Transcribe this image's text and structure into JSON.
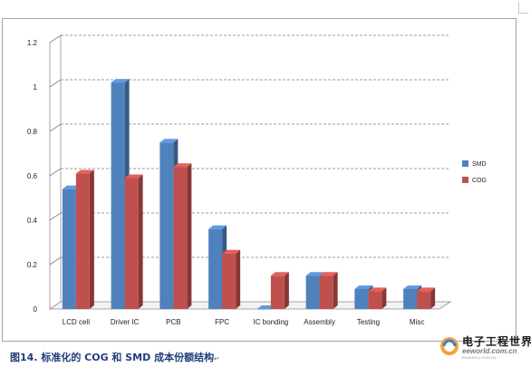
{
  "chart_data": {
    "type": "bar",
    "categories": [
      "LCD cell",
      "Driver IC",
      "PCB",
      "FPC",
      "IC bonding",
      "Assembly",
      "Testing",
      "Misc"
    ],
    "series": [
      {
        "name": "SMD",
        "color": "#4f81bd",
        "values": [
          0.54,
          1.02,
          0.75,
          0.36,
          0.0,
          0.15,
          0.09,
          0.09
        ]
      },
      {
        "name": "COG",
        "color": "#c0504d",
        "values": [
          0.61,
          0.59,
          0.64,
          0.25,
          0.15,
          0.15,
          0.08,
          0.08
        ]
      }
    ],
    "yticks": [
      "0",
      "0.2",
      "0.4",
      "0.6",
      "0.8",
      "1",
      "1.2"
    ],
    "ylim": [
      0,
      1.2
    ],
    "grid": true,
    "legend_position": "right",
    "style": "3d-clustered-bar"
  },
  "caption": {
    "text": "图14. 标准化的 COG 和 SMD 成本份额结构",
    "mark": "↵"
  },
  "watermark": {
    "title": "电子工程世界",
    "site": "eeworld.com.cn",
    "small": "EEWORLD.COM.CN"
  }
}
